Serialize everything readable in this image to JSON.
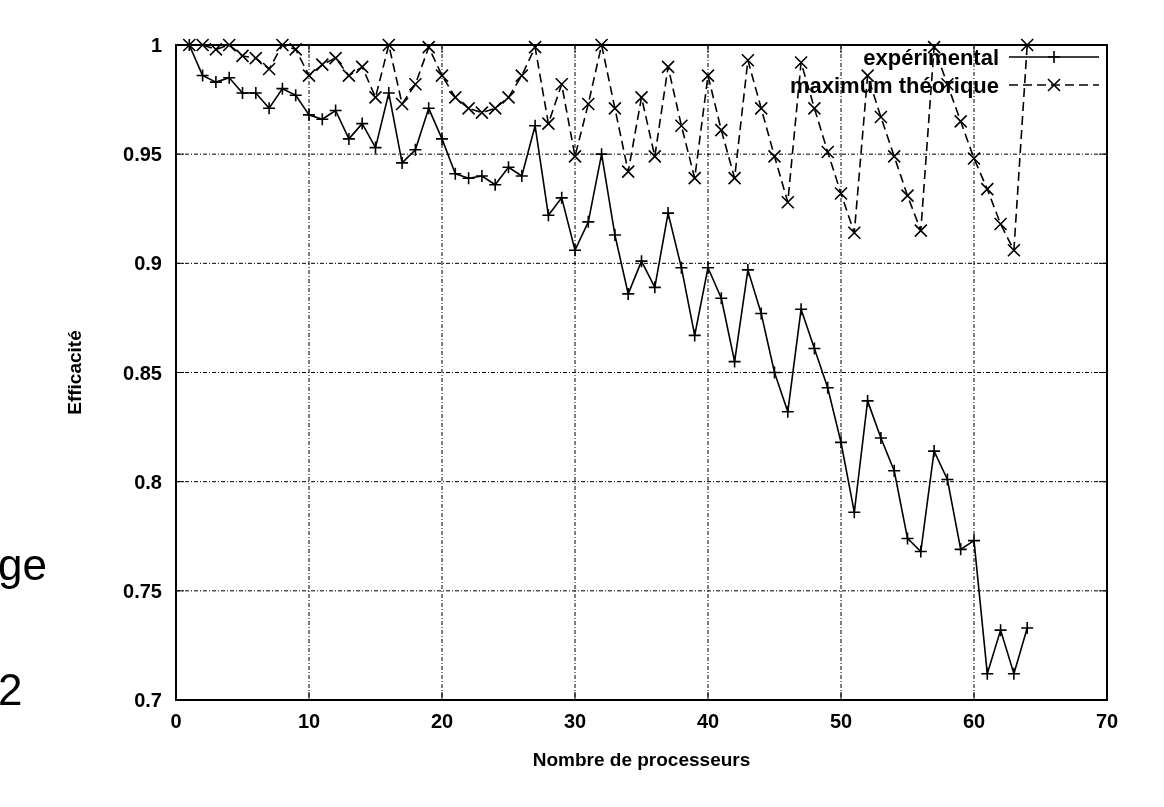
{
  "chart_data": {
    "type": "line",
    "xlabel": "Nombre de processeurs",
    "ylabel": "Efficacité",
    "x": [
      1,
      2,
      3,
      4,
      5,
      6,
      7,
      8,
      9,
      10,
      11,
      12,
      13,
      14,
      15,
      16,
      17,
      18,
      19,
      20,
      21,
      22,
      23,
      24,
      25,
      26,
      27,
      28,
      29,
      30,
      31,
      32,
      33,
      34,
      35,
      36,
      37,
      38,
      39,
      40,
      41,
      42,
      43,
      44,
      45,
      46,
      47,
      48,
      49,
      50,
      51,
      52,
      53,
      54,
      55,
      56,
      57,
      58,
      59,
      60,
      61,
      62,
      63,
      64
    ],
    "series": [
      {
        "name": "expérimental",
        "color": "#000000",
        "line_style": "solid",
        "marker": "cross",
        "values": [
          1.0,
          0.986,
          0.983,
          0.985,
          0.978,
          0.978,
          0.971,
          0.98,
          0.977,
          0.968,
          0.966,
          0.97,
          0.957,
          0.964,
          0.953,
          0.978,
          0.946,
          0.952,
          0.971,
          0.957,
          0.941,
          0.939,
          0.94,
          0.936,
          0.944,
          0.94,
          0.963,
          0.922,
          0.93,
          0.906,
          0.919,
          0.95,
          0.913,
          0.886,
          0.901,
          0.889,
          0.923,
          0.898,
          0.867,
          0.898,
          0.884,
          0.855,
          0.897,
          0.877,
          0.85,
          0.832,
          0.879,
          0.861,
          0.843,
          0.818,
          0.786,
          0.837,
          0.82,
          0.805,
          0.774,
          0.768,
          0.814,
          0.801,
          0.769,
          0.773,
          0.712,
          0.732,
          0.712,
          0.733
        ]
      },
      {
        "name": "maximum théorique",
        "color": "#000000",
        "line_style": "dashed",
        "marker": "x",
        "values": [
          1.0,
          1.0,
          0.998,
          1.0,
          0.995,
          0.994,
          0.989,
          1.0,
          0.998,
          0.986,
          0.991,
          0.994,
          0.986,
          0.99,
          0.976,
          1.0,
          0.973,
          0.982,
          0.999,
          0.986,
          0.976,
          0.971,
          0.969,
          0.971,
          0.976,
          0.986,
          0.999,
          0.964,
          0.982,
          0.949,
          0.973,
          1.0,
          0.971,
          0.942,
          0.976,
          0.949,
          0.99,
          0.963,
          0.939,
          0.986,
          0.961,
          0.939,
          0.993,
          0.971,
          0.949,
          0.928,
          0.992,
          0.971,
          0.951,
          0.932,
          0.914,
          0.986,
          0.967,
          0.949,
          0.931,
          0.915,
          0.999,
          0.982,
          0.965,
          0.948,
          0.934,
          0.918,
          0.906,
          1.0
        ]
      }
    ],
    "xlim": [
      0,
      70
    ],
    "xticks": [
      0,
      10,
      20,
      30,
      40,
      50,
      60,
      70
    ],
    "ylim": [
      0.7,
      1
    ],
    "yticks": [
      {
        "value": 0.7,
        "label": "0.7"
      },
      0.75,
      {
        "value": 0.8,
        "label": "0.8"
      },
      0.85,
      {
        "value": 0.9,
        "label": "0.9"
      },
      0.95,
      {
        "value": 1,
        "label": "1"
      }
    ],
    "grid": true,
    "legend": "top right",
    "annotations": [
      "ge",
      "2"
    ]
  }
}
